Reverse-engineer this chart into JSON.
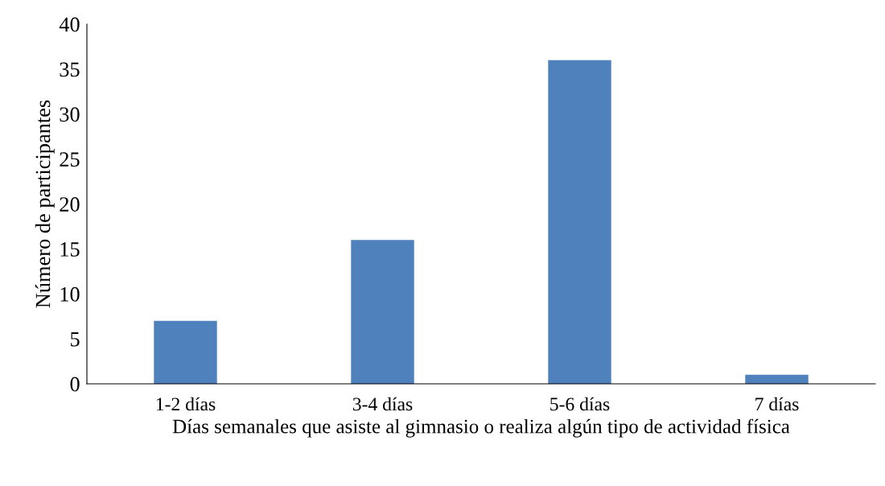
{
  "chart_data": {
    "type": "bar",
    "xlabel": "Días semanales que asiste al gimnasio o realiza algún tipo de actividad física",
    "ylabel": "Número de participantes",
    "categories": [
      "1-2 días",
      "3-4 días",
      "5-6 días",
      "7 días"
    ],
    "values": [
      7,
      16,
      36,
      1
    ],
    "color": "#4f81bd",
    "ylim": [
      0,
      40
    ],
    "yticks": [
      0,
      5,
      10,
      15,
      20,
      25,
      30,
      35,
      40
    ],
    "grid": false,
    "legend": false
  }
}
